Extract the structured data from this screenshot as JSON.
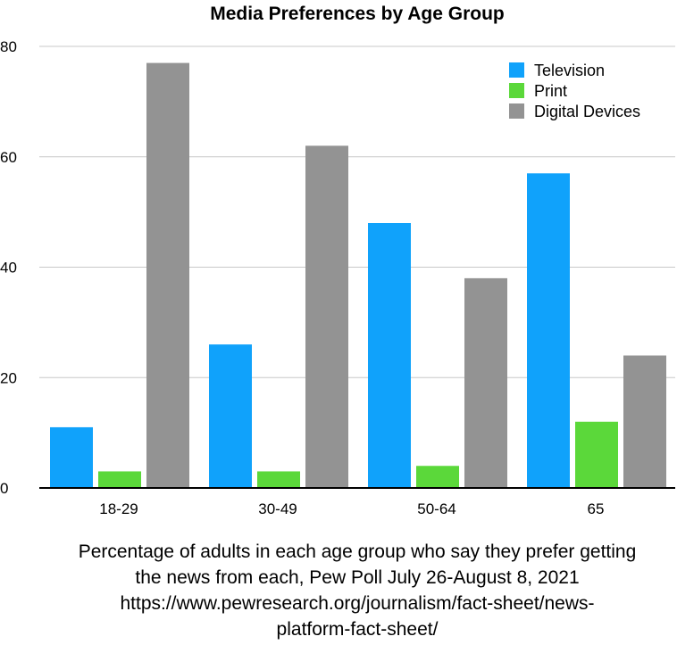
{
  "chart_data": {
    "type": "bar",
    "title": "Media Preferences by Age Group",
    "xlabel": "",
    "ylabel": "",
    "categories": [
      "18-29",
      "30-49",
      "50-64",
      "65"
    ],
    "series": [
      {
        "name": "Television",
        "color": "#10a2fb",
        "values": [
          11,
          26,
          48,
          57
        ]
      },
      {
        "name": "Print",
        "color": "#5bd83a",
        "values": [
          3,
          3,
          4,
          12
        ]
      },
      {
        "name": "Digital Devices",
        "color": "#939393",
        "values": [
          77,
          62,
          38,
          24
        ]
      }
    ],
    "ylim": [
      0,
      80
    ],
    "yticks": [
      0,
      20,
      40,
      60,
      80
    ],
    "grid": true,
    "legend_position": "top-right"
  },
  "caption": {
    "lines": [
      "Percentage of adults in each age group who say they prefer getting",
      "the news from each, Pew Poll July 26-August 8, 2021",
      "https://www.pewresearch.org/journalism/fact-sheet/news-",
      "platform-fact-sheet/"
    ]
  }
}
